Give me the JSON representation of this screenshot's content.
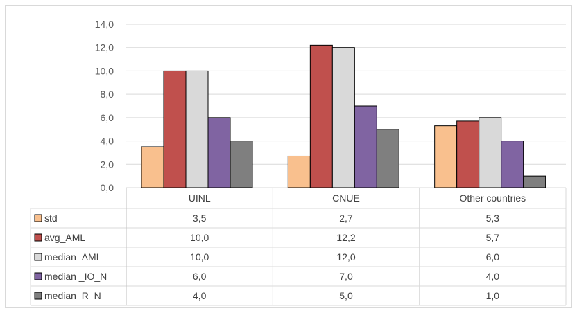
{
  "chart_data": {
    "type": "bar",
    "categories": [
      "UINL",
      "CNUE",
      "Other countries"
    ],
    "series": [
      {
        "name": "std",
        "values": [
          3.5,
          2.7,
          5.3
        ],
        "labels": [
          "3,5",
          "2,7",
          "5,3"
        ],
        "color": "#f9c08e"
      },
      {
        "name": "avg_AML",
        "values": [
          10.0,
          12.2,
          5.7
        ],
        "labels": [
          "10,0",
          "12,2",
          "5,7"
        ],
        "color": "#c0504d"
      },
      {
        "name": "median_AML",
        "values": [
          10.0,
          12.0,
          6.0
        ],
        "labels": [
          "10,0",
          "12,0",
          "6,0"
        ],
        "color": "#d9d9d9"
      },
      {
        "name": "median _IO_N",
        "values": [
          6.0,
          7.0,
          4.0
        ],
        "labels": [
          "6,0",
          "7,0",
          "4,0"
        ],
        "color": "#8064a2"
      },
      {
        "name": "median_R_N",
        "values": [
          4.0,
          5.0,
          1.0
        ],
        "labels": [
          "4,0",
          "5,0",
          "1,0"
        ],
        "color": "#7f7f7f"
      }
    ],
    "ylim": [
      0,
      14
    ],
    "y_ticks": [
      "0,0",
      "2,0",
      "4,0",
      "6,0",
      "8,0",
      "10,0",
      "12,0",
      "14,0"
    ],
    "gridlines": true,
    "legend": "data-table",
    "title": "",
    "xlabel": "",
    "ylabel": ""
  }
}
